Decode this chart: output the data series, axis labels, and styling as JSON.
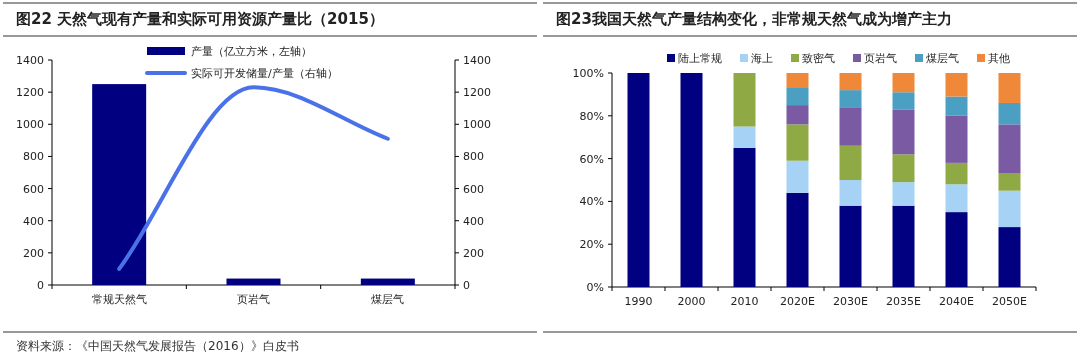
{
  "chart_data": [
    {
      "type": "bar",
      "title": "图22  天然气现有产量和实际可用资源产量比（2015）",
      "categories": [
        "常规天然气",
        "页岩气",
        "煤层气"
      ],
      "series": [
        {
          "name": "产量（亿立方米，左轴）",
          "color": "#000080",
          "values": [
            1250,
            40,
            40
          ]
        },
        {
          "name": "实际可开发储量/产量（右轴）",
          "color": "#4a72e8",
          "type": "line",
          "axis": "y2",
          "values": [
            100,
            1230,
            910
          ]
        }
      ],
      "ylim": [
        0,
        1400
      ],
      "yticks": [
        0,
        200,
        400,
        600,
        800,
        1000,
        1200,
        1400
      ],
      "y2lim": [
        0,
        1400
      ],
      "y2ticks": [
        0,
        200,
        400,
        600,
        800,
        1000,
        1200,
        1400
      ],
      "legend": "top",
      "annotations": [
        "资料来源：《中国天然气发展报告（2016）》白皮书"
      ]
    },
    {
      "type": "bar",
      "stacked": true,
      "title": "图23我国天然气产量结构变化，非常规天然气成为增产主力",
      "categories": [
        "1990",
        "2000",
        "2010",
        "2020E",
        "2030E",
        "2035E",
        "2040E",
        "2050E"
      ],
      "series": [
        {
          "name": "陆上常规",
          "color": "#000080",
          "values": [
            100,
            100,
            65,
            44,
            38,
            38,
            35,
            28
          ]
        },
        {
          "name": "海上",
          "color": "#a6d3f5",
          "values": [
            0,
            0,
            10,
            15,
            12,
            11,
            13,
            17
          ]
        },
        {
          "name": "致密气",
          "color": "#8faa45",
          "values": [
            0,
            0,
            25,
            17,
            16,
            13,
            10,
            8
          ]
        },
        {
          "name": "页岩气",
          "color": "#7a5ba3",
          "values": [
            0,
            0,
            0,
            9,
            18,
            21,
            22,
            23
          ]
        },
        {
          "name": "煤层气",
          "color": "#4a9fc2",
          "values": [
            0,
            0,
            0,
            8,
            8,
            8,
            9,
            10
          ]
        },
        {
          "name": "其他",
          "color": "#f0883a",
          "values": [
            0,
            0,
            0,
            7,
            8,
            9,
            11,
            14
          ]
        }
      ],
      "ylim": [
        0,
        100
      ],
      "yticks": [
        {
          "value": 0,
          "label": "0%"
        },
        {
          "value": 20,
          "label": "20%"
        },
        {
          "value": 40,
          "label": "40%"
        },
        {
          "value": 60,
          "label": "60%"
        },
        {
          "value": 80,
          "label": "80%"
        },
        {
          "value": 100,
          "label": "100%"
        }
      ],
      "legend": "top"
    }
  ]
}
